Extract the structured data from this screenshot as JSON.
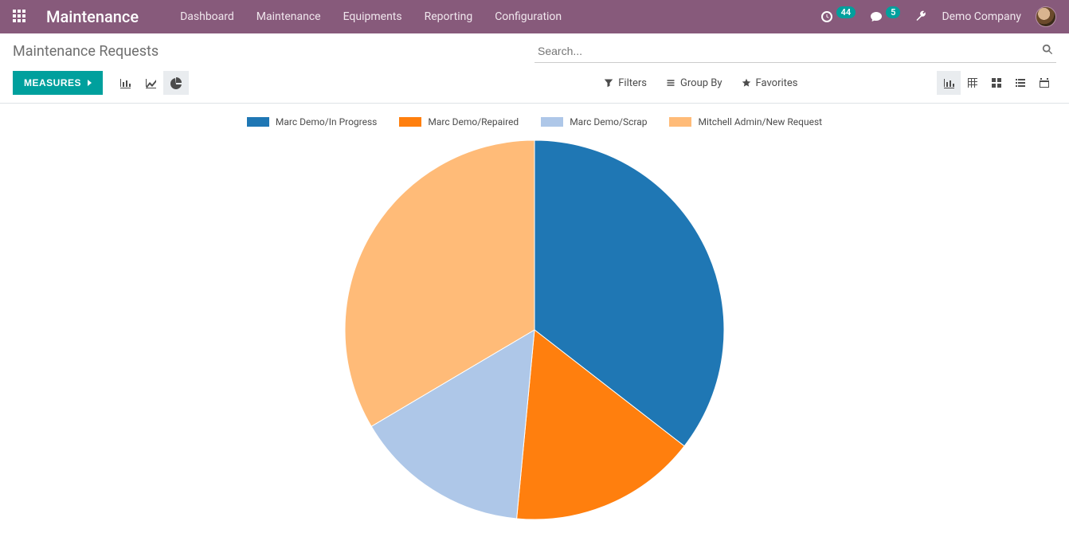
{
  "navbar": {
    "brand": "Maintenance",
    "menu": [
      {
        "label": "Dashboard"
      },
      {
        "label": "Maintenance"
      },
      {
        "label": "Equipments"
      },
      {
        "label": "Reporting"
      },
      {
        "label": "Configuration"
      }
    ],
    "activities_count": "44",
    "messages_count": "5",
    "company": "Demo Company"
  },
  "breadcrumb": "Maintenance Requests",
  "search": {
    "placeholder": "Search..."
  },
  "toolbar": {
    "measures_label": "MEASURES",
    "filters_label": "Filters",
    "groupby_label": "Group By",
    "favorites_label": "Favorites"
  },
  "chart": {
    "type": "pie",
    "diameter": 480,
    "background_color": "#ffffff",
    "slice_stroke": "#ffffff",
    "legend_font_size": 12,
    "legend_swatch_width": 28,
    "legend_swatch_height": 12,
    "series": [
      {
        "label": "Marc Demo/In Progress",
        "value": 35.5,
        "color": "#1f77b4"
      },
      {
        "label": "Marc Demo/Repaired",
        "value": 16,
        "color": "#ff7f0e"
      },
      {
        "label": "Marc Demo/Scrap",
        "value": 15,
        "color": "#aec7e8"
      },
      {
        "label": "Mitchell Admin/New Request",
        "value": 33.5,
        "color": "#ffbb78"
      }
    ]
  }
}
